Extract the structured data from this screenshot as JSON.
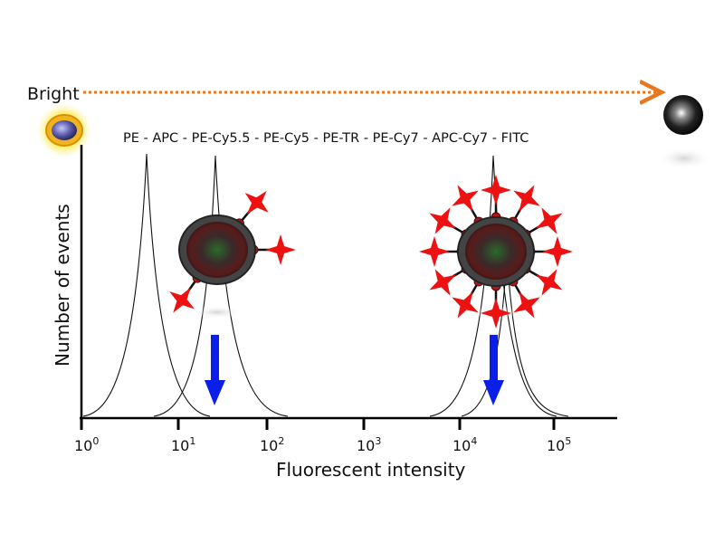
{
  "bright_label": "Bright",
  "fluorophores": "PE - APC - PE-Cy5.5 - PE-Cy5  - PE-TR - PE-Cy7 - APC-Cy7 - FITC",
  "axis": {
    "x_label": "Fluorescent intensity",
    "y_label": "Number of events",
    "ticks": [
      {
        "base": "10",
        "exp": "0"
      },
      {
        "base": "10",
        "exp": "1"
      },
      {
        "base": "10",
        "exp": "2"
      },
      {
        "base": "10",
        "exp": "3"
      },
      {
        "base": "10",
        "exp": "4"
      },
      {
        "base": "10",
        "exp": "5"
      }
    ]
  },
  "colors": {
    "arrow_dotted": "#e87722",
    "shift_arrow": "#0b1fe8",
    "star": "#ee1111",
    "antibody": "#cc33cc",
    "bead_ring": "#555555"
  },
  "icons": [
    "bright-bead-icon",
    "dark-bead-icon",
    "nanoparticle-icon",
    "fluorophore-star-icon"
  ]
}
